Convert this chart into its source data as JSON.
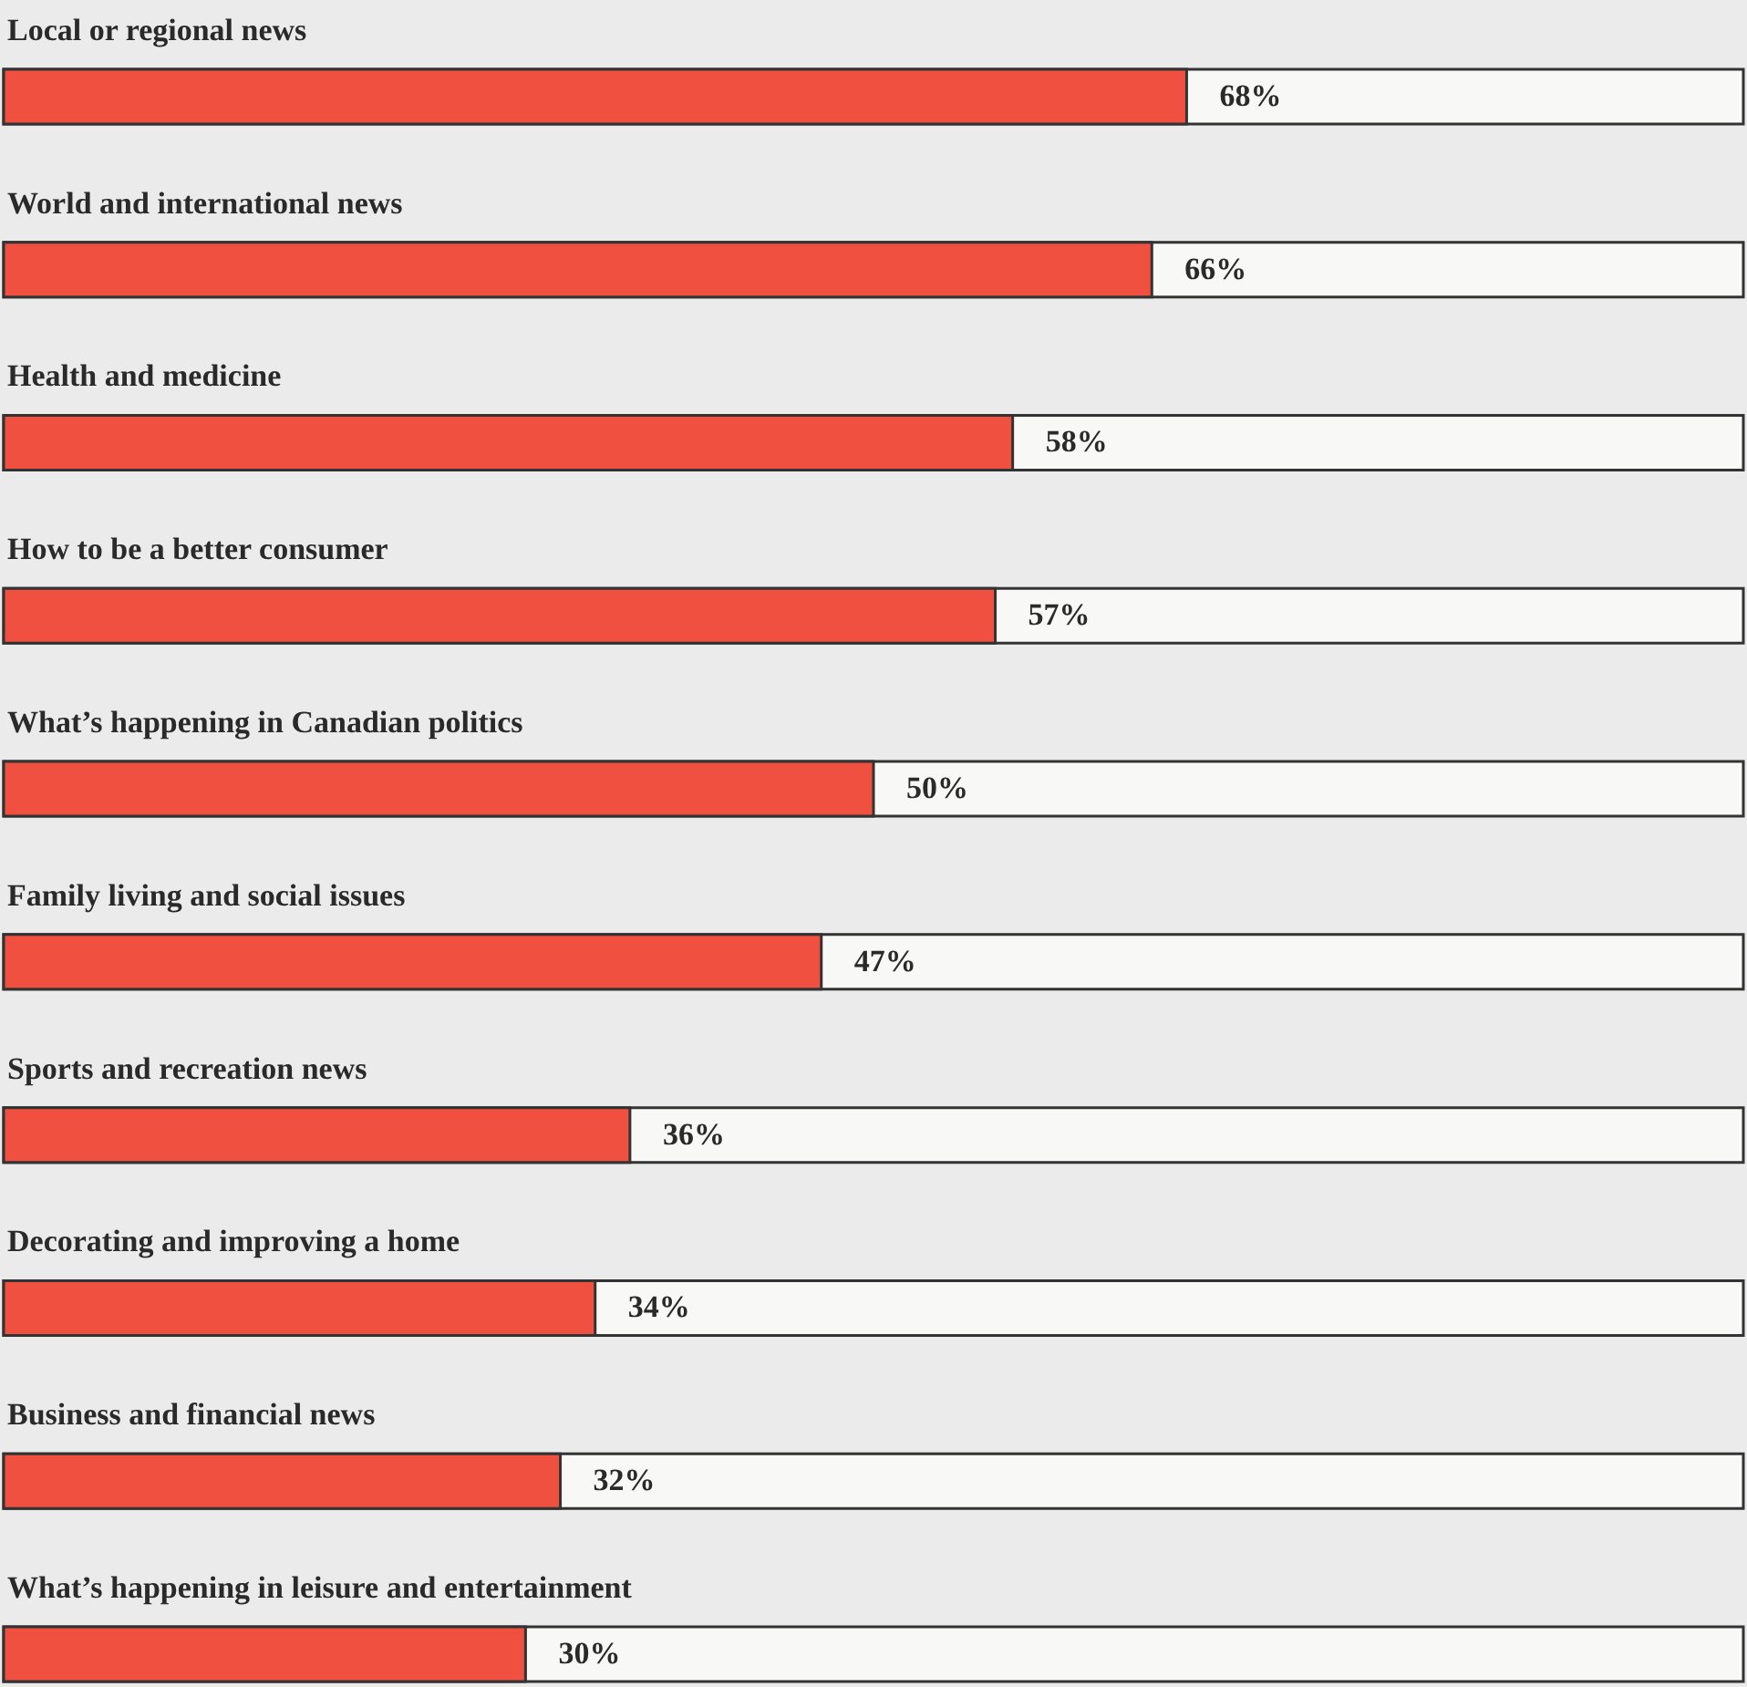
{
  "chart_data": {
    "type": "bar",
    "orientation": "horizontal",
    "categories": [
      "Local or regional news",
      "World and international news",
      "Health and medicine",
      "How to be a better consumer",
      "What’s happening in Canadian politics",
      "Family living and social issues",
      "Sports and recreation news",
      "Decorating and improving a home",
      "Business and financial news",
      "What’s happening in leisure and entertainment"
    ],
    "values": [
      68,
      66,
      58,
      57,
      50,
      47,
      36,
      34,
      32,
      30
    ],
    "value_labels": [
      "68%",
      "66%",
      "58%",
      "57%",
      "50%",
      "47%",
      "36%",
      "34%",
      "32%",
      "30%"
    ],
    "color": "#f0503f",
    "xlim": [
      0,
      100
    ],
    "tick_labels": false,
    "grid": false
  }
}
